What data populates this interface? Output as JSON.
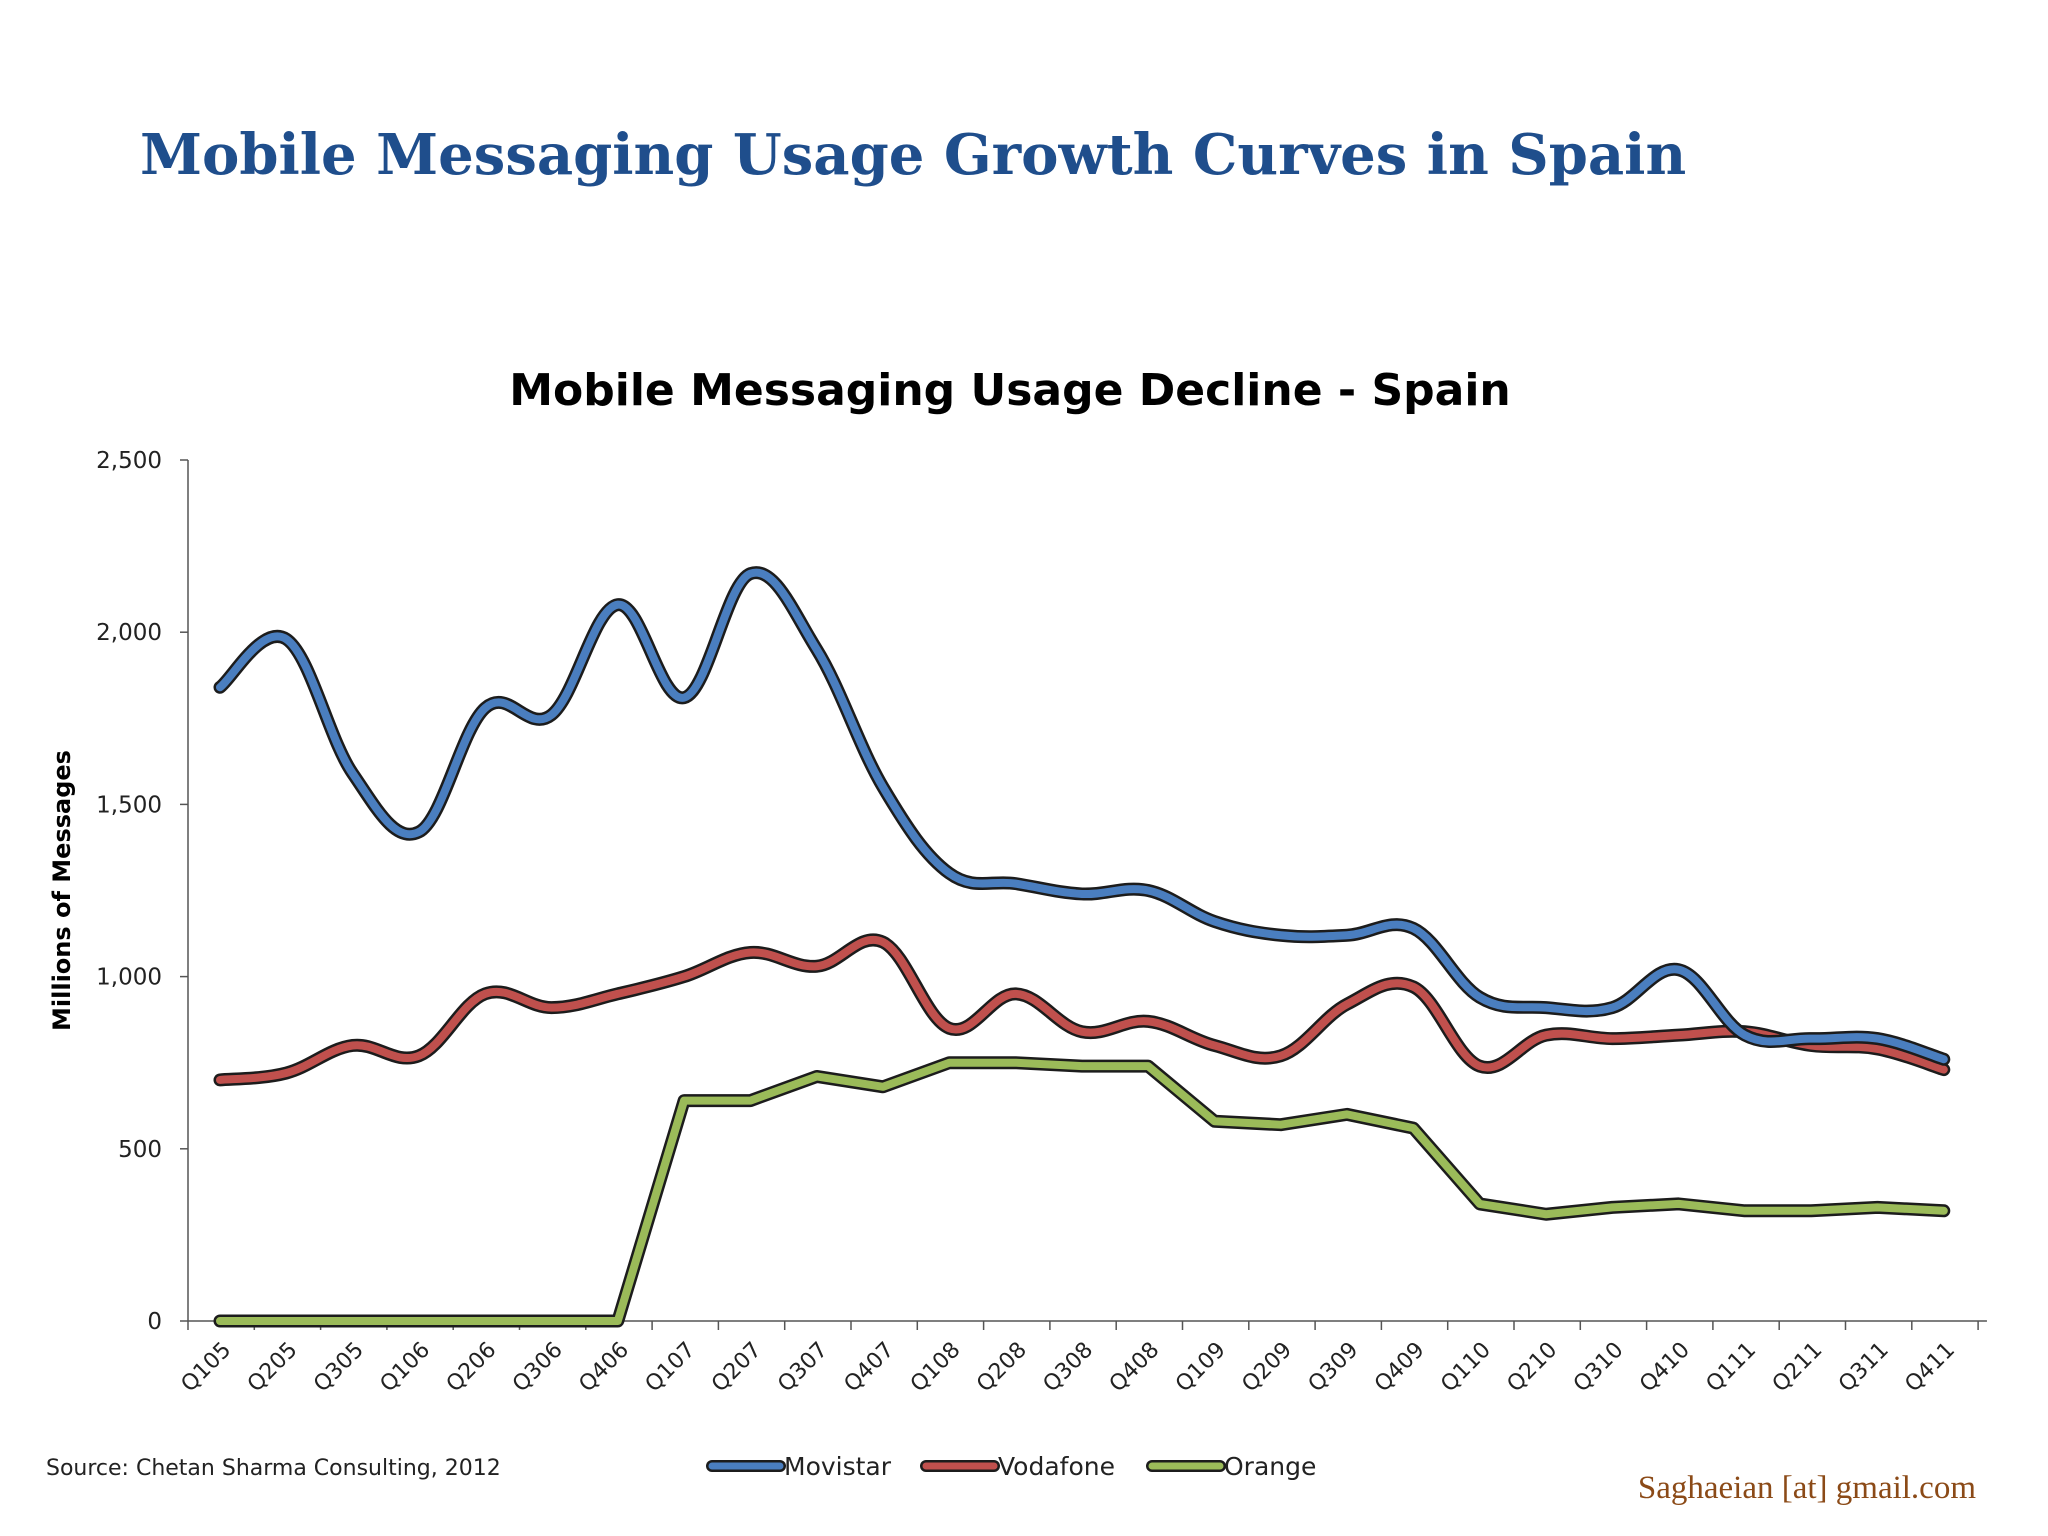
{
  "slide": {
    "title": "Mobile Messaging Usage Growth Curves in Spain",
    "source": "Source:  Chetan Sharma Consulting, 2012",
    "credit": "Saghaeian [at] gmail.com"
  },
  "chart_data": {
    "type": "line",
    "title": "Mobile Messaging Usage Decline - Spain",
    "xlabel": "",
    "ylabel": "Millions of Messages",
    "ylim": [
      0,
      2500
    ],
    "yticks": [
      "0",
      "500",
      "1,000",
      "1,500",
      "2,000",
      "2,500"
    ],
    "ytick_values": [
      0,
      500,
      1000,
      1500,
      2000,
      2500
    ],
    "grid": false,
    "legend_position": "bottom",
    "categories": [
      "Q105",
      "Q205",
      "Q305",
      "Q106",
      "Q206",
      "Q306",
      "Q406",
      "Q107",
      "Q207",
      "Q307",
      "Q407",
      "Q108",
      "Q208",
      "Q308",
      "Q408",
      "Q109",
      "Q209",
      "Q309",
      "Q409",
      "Q110",
      "Q210",
      "Q310",
      "Q410",
      "Q111",
      "Q211",
      "Q311",
      "Q411"
    ],
    "series": [
      {
        "name": "Movistar",
        "color": "#4a7ebf",
        "values": [
          1840,
          1980,
          1590,
          1420,
          1780,
          1760,
          2080,
          1810,
          2170,
          1950,
          1550,
          1300,
          1270,
          1240,
          1250,
          1160,
          1120,
          1120,
          1140,
          940,
          910,
          910,
          1020,
          830,
          820,
          820,
          760
        ]
      },
      {
        "name": "Vodafone",
        "color": "#c0504d",
        "values": [
          700,
          720,
          800,
          770,
          950,
          910,
          950,
          1000,
          1070,
          1030,
          1100,
          850,
          950,
          840,
          870,
          800,
          770,
          920,
          970,
          740,
          830,
          820,
          830,
          840,
          800,
          790,
          730
        ]
      },
      {
        "name": "Orange",
        "color": "#9bbb59",
        "values": [
          0,
          0,
          0,
          0,
          0,
          0,
          0,
          640,
          640,
          710,
          680,
          750,
          750,
          740,
          740,
          580,
          570,
          600,
          560,
          340,
          310,
          330,
          340,
          320,
          320,
          330,
          320
        ]
      }
    ]
  }
}
